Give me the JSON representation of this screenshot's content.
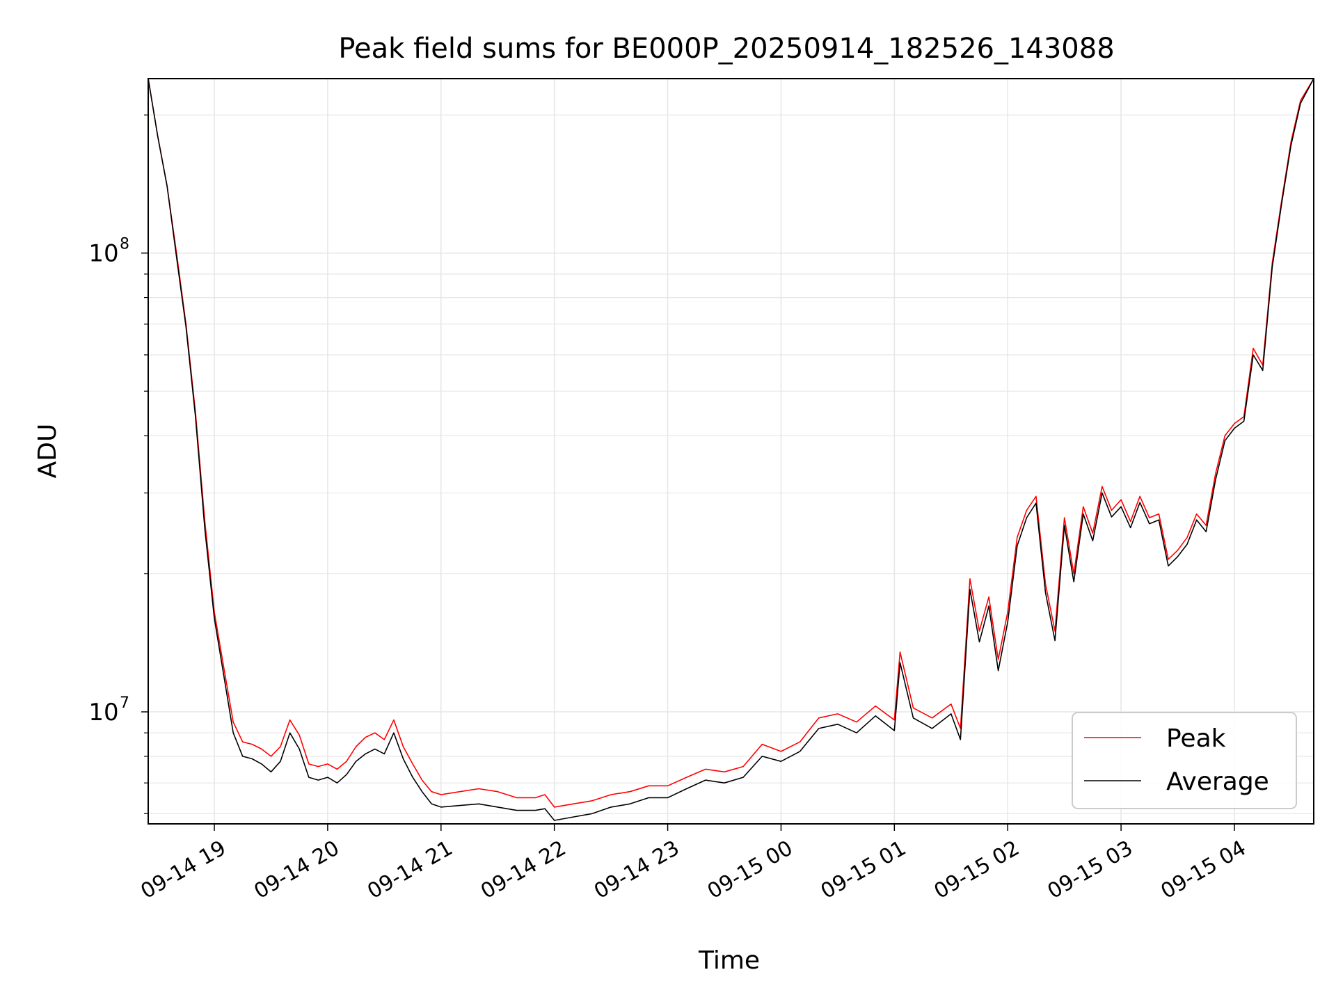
{
  "chart_data": {
    "type": "line",
    "title": "Peak field sums for BE000P_20250914_182526_143088",
    "xlabel": "Time",
    "ylabel": "ADU",
    "y_scale": "log",
    "xlim": [
      "2025-09-14 18:25",
      "2025-09-15 04:42"
    ],
    "ylim": [
      5700000,
      240000000
    ],
    "grid": true,
    "legend_position": "lower right",
    "x_tick_labels": [
      "09-14 19",
      "09-14 20",
      "09-14 21",
      "09-14 22",
      "09-14 23",
      "09-15 00",
      "09-15 01",
      "09-15 02",
      "09-15 03",
      "09-15 04"
    ],
    "y_tick_labels": [
      {
        "value": 10000000,
        "base": "10",
        "exp": "7"
      },
      {
        "value": 100000000,
        "base": "10",
        "exp": "8"
      }
    ],
    "series": [
      {
        "name": "Peak",
        "color": "#ff0000",
        "points": [
          [
            "2025-09-14 18:25",
            240000000
          ],
          [
            "2025-09-14 18:30",
            180000000
          ],
          [
            "2025-09-14 18:35",
            140000000
          ],
          [
            "2025-09-14 18:40",
            100000000
          ],
          [
            "2025-09-14 18:45",
            70000000
          ],
          [
            "2025-09-14 18:50",
            45000000
          ],
          [
            "2025-09-14 18:55",
            26000000
          ],
          [
            "2025-09-14 19:00",
            16500000
          ],
          [
            "2025-09-14 19:05",
            12500000
          ],
          [
            "2025-09-14 19:10",
            9500000
          ],
          [
            "2025-09-14 19:15",
            8600000
          ],
          [
            "2025-09-14 19:20",
            8500000
          ],
          [
            "2025-09-14 19:25",
            8300000
          ],
          [
            "2025-09-14 19:30",
            8000000
          ],
          [
            "2025-09-14 19:35",
            8400000
          ],
          [
            "2025-09-14 19:40",
            9600000
          ],
          [
            "2025-09-14 19:45",
            8900000
          ],
          [
            "2025-09-14 19:50",
            7700000
          ],
          [
            "2025-09-14 19:55",
            7600000
          ],
          [
            "2025-09-14 20:00",
            7700000
          ],
          [
            "2025-09-14 20:05",
            7500000
          ],
          [
            "2025-09-14 20:10",
            7800000
          ],
          [
            "2025-09-14 20:15",
            8400000
          ],
          [
            "2025-09-14 20:20",
            8800000
          ],
          [
            "2025-09-14 20:25",
            9000000
          ],
          [
            "2025-09-14 20:30",
            8700000
          ],
          [
            "2025-09-14 20:35",
            9600000
          ],
          [
            "2025-09-14 20:40",
            8400000
          ],
          [
            "2025-09-14 20:45",
            7700000
          ],
          [
            "2025-09-14 20:50",
            7100000
          ],
          [
            "2025-09-14 20:55",
            6700000
          ],
          [
            "2025-09-14 21:00",
            6600000
          ],
          [
            "2025-09-14 21:10",
            6700000
          ],
          [
            "2025-09-14 21:20",
            6800000
          ],
          [
            "2025-09-14 21:30",
            6700000
          ],
          [
            "2025-09-14 21:40",
            6500000
          ],
          [
            "2025-09-14 21:50",
            6500000
          ],
          [
            "2025-09-14 21:55",
            6600000
          ],
          [
            "2025-09-14 22:00",
            6200000
          ],
          [
            "2025-09-14 22:10",
            6300000
          ],
          [
            "2025-09-14 22:20",
            6400000
          ],
          [
            "2025-09-14 22:30",
            6600000
          ],
          [
            "2025-09-14 22:40",
            6700000
          ],
          [
            "2025-09-14 22:50",
            6900000
          ],
          [
            "2025-09-14 23:00",
            6900000
          ],
          [
            "2025-09-14 23:10",
            7200000
          ],
          [
            "2025-09-14 23:20",
            7500000
          ],
          [
            "2025-09-14 23:30",
            7400000
          ],
          [
            "2025-09-14 23:40",
            7600000
          ],
          [
            "2025-09-14 23:50",
            8500000
          ],
          [
            "2025-09-15 00:00",
            8200000
          ],
          [
            "2025-09-15 00:10",
            8600000
          ],
          [
            "2025-09-15 00:20",
            9700000
          ],
          [
            "2025-09-15 00:30",
            9900000
          ],
          [
            "2025-09-15 00:40",
            9500000
          ],
          [
            "2025-09-15 00:50",
            10300000
          ],
          [
            "2025-09-15 01:00",
            9600000
          ],
          [
            "2025-09-15 01:03",
            13500000
          ],
          [
            "2025-09-15 01:10",
            10200000
          ],
          [
            "2025-09-15 01:20",
            9700000
          ],
          [
            "2025-09-15 01:30",
            10400000
          ],
          [
            "2025-09-15 01:35",
            9200000
          ],
          [
            "2025-09-15 01:40",
            19500000
          ],
          [
            "2025-09-15 01:45",
            15000000
          ],
          [
            "2025-09-15 01:50",
            17800000
          ],
          [
            "2025-09-15 01:55",
            13000000
          ],
          [
            "2025-09-15 02:00",
            16500000
          ],
          [
            "2025-09-15 02:05",
            24000000
          ],
          [
            "2025-09-15 02:10",
            27500000
          ],
          [
            "2025-09-15 02:15",
            29500000
          ],
          [
            "2025-09-15 02:20",
            19000000
          ],
          [
            "2025-09-15 02:25",
            15000000
          ],
          [
            "2025-09-15 02:30",
            26500000
          ],
          [
            "2025-09-15 02:35",
            20000000
          ],
          [
            "2025-09-15 02:40",
            28000000
          ],
          [
            "2025-09-15 02:45",
            24500000
          ],
          [
            "2025-09-15 02:50",
            31000000
          ],
          [
            "2025-09-15 02:55",
            27500000
          ],
          [
            "2025-09-15 03:00",
            29000000
          ],
          [
            "2025-09-15 03:05",
            26000000
          ],
          [
            "2025-09-15 03:10",
            29500000
          ],
          [
            "2025-09-15 03:15",
            26500000
          ],
          [
            "2025-09-15 03:20",
            27000000
          ],
          [
            "2025-09-15 03:25",
            21500000
          ],
          [
            "2025-09-15 03:30",
            22500000
          ],
          [
            "2025-09-15 03:35",
            24000000
          ],
          [
            "2025-09-15 03:40",
            27000000
          ],
          [
            "2025-09-15 03:45",
            25500000
          ],
          [
            "2025-09-15 03:50",
            33000000
          ],
          [
            "2025-09-15 03:55",
            40000000
          ],
          [
            "2025-09-15 04:00",
            42500000
          ],
          [
            "2025-09-15 04:05",
            44000000
          ],
          [
            "2025-09-15 04:10",
            62000000
          ],
          [
            "2025-09-15 04:15",
            57000000
          ],
          [
            "2025-09-15 04:20",
            95000000
          ],
          [
            "2025-09-15 04:25",
            130000000
          ],
          [
            "2025-09-15 04:30",
            175000000
          ],
          [
            "2025-09-15 04:35",
            215000000
          ],
          [
            "2025-09-15 04:42",
            240000000
          ]
        ]
      },
      {
        "name": "Average",
        "color": "#000000",
        "points": [
          [
            "2025-09-14 18:25",
            240000000
          ],
          [
            "2025-09-14 18:30",
            180000000
          ],
          [
            "2025-09-14 18:35",
            140000000
          ],
          [
            "2025-09-14 18:40",
            98000000
          ],
          [
            "2025-09-14 18:45",
            69000000
          ],
          [
            "2025-09-14 18:50",
            44000000
          ],
          [
            "2025-09-14 18:55",
            25000000
          ],
          [
            "2025-09-14 19:00",
            16000000
          ],
          [
            "2025-09-14 19:05",
            12000000
          ],
          [
            "2025-09-14 19:10",
            9000000
          ],
          [
            "2025-09-14 19:15",
            8000000
          ],
          [
            "2025-09-14 19:20",
            7900000
          ],
          [
            "2025-09-14 19:25",
            7700000
          ],
          [
            "2025-09-14 19:30",
            7400000
          ],
          [
            "2025-09-14 19:35",
            7800000
          ],
          [
            "2025-09-14 19:40",
            9000000
          ],
          [
            "2025-09-14 19:45",
            8300000
          ],
          [
            "2025-09-14 19:50",
            7200000
          ],
          [
            "2025-09-14 19:55",
            7100000
          ],
          [
            "2025-09-14 20:00",
            7200000
          ],
          [
            "2025-09-14 20:05",
            7000000
          ],
          [
            "2025-09-14 20:10",
            7300000
          ],
          [
            "2025-09-14 20:15",
            7800000
          ],
          [
            "2025-09-14 20:20",
            8100000
          ],
          [
            "2025-09-14 20:25",
            8300000
          ],
          [
            "2025-09-14 20:30",
            8100000
          ],
          [
            "2025-09-14 20:35",
            9000000
          ],
          [
            "2025-09-14 20:40",
            7900000
          ],
          [
            "2025-09-14 20:45",
            7200000
          ],
          [
            "2025-09-14 20:50",
            6700000
          ],
          [
            "2025-09-14 20:55",
            6300000
          ],
          [
            "2025-09-14 21:00",
            6200000
          ],
          [
            "2025-09-14 21:10",
            6250000
          ],
          [
            "2025-09-14 21:20",
            6300000
          ],
          [
            "2025-09-14 21:30",
            6200000
          ],
          [
            "2025-09-14 21:40",
            6100000
          ],
          [
            "2025-09-14 21:50",
            6100000
          ],
          [
            "2025-09-14 21:55",
            6150000
          ],
          [
            "2025-09-14 22:00",
            5800000
          ],
          [
            "2025-09-14 22:10",
            5900000
          ],
          [
            "2025-09-14 22:20",
            6000000
          ],
          [
            "2025-09-14 22:30",
            6200000
          ],
          [
            "2025-09-14 22:40",
            6300000
          ],
          [
            "2025-09-14 22:50",
            6500000
          ],
          [
            "2025-09-14 23:00",
            6500000
          ],
          [
            "2025-09-14 23:10",
            6800000
          ],
          [
            "2025-09-14 23:20",
            7100000
          ],
          [
            "2025-09-14 23:30",
            7000000
          ],
          [
            "2025-09-14 23:40",
            7200000
          ],
          [
            "2025-09-14 23:50",
            8000000
          ],
          [
            "2025-09-15 00:00",
            7800000
          ],
          [
            "2025-09-15 00:10",
            8200000
          ],
          [
            "2025-09-15 00:20",
            9200000
          ],
          [
            "2025-09-15 00:30",
            9400000
          ],
          [
            "2025-09-15 00:40",
            9000000
          ],
          [
            "2025-09-15 00:50",
            9800000
          ],
          [
            "2025-09-15 01:00",
            9100000
          ],
          [
            "2025-09-15 01:03",
            12800000
          ],
          [
            "2025-09-15 01:10",
            9700000
          ],
          [
            "2025-09-15 01:20",
            9200000
          ],
          [
            "2025-09-15 01:30",
            9900000
          ],
          [
            "2025-09-15 01:35",
            8700000
          ],
          [
            "2025-09-15 01:40",
            18500000
          ],
          [
            "2025-09-15 01:45",
            14200000
          ],
          [
            "2025-09-15 01:50",
            17000000
          ],
          [
            "2025-09-15 01:55",
            12300000
          ],
          [
            "2025-09-15 02:00",
            15700000
          ],
          [
            "2025-09-15 02:05",
            23000000
          ],
          [
            "2025-09-15 02:10",
            26500000
          ],
          [
            "2025-09-15 02:15",
            28500000
          ],
          [
            "2025-09-15 02:20",
            18200000
          ],
          [
            "2025-09-15 02:25",
            14300000
          ],
          [
            "2025-09-15 02:30",
            25500000
          ],
          [
            "2025-09-15 02:35",
            19200000
          ],
          [
            "2025-09-15 02:40",
            27000000
          ],
          [
            "2025-09-15 02:45",
            23600000
          ],
          [
            "2025-09-15 02:50",
            30000000
          ],
          [
            "2025-09-15 02:55",
            26600000
          ],
          [
            "2025-09-15 03:00",
            28000000
          ],
          [
            "2025-09-15 03:05",
            25200000
          ],
          [
            "2025-09-15 03:10",
            28600000
          ],
          [
            "2025-09-15 03:15",
            25700000
          ],
          [
            "2025-09-15 03:20",
            26200000
          ],
          [
            "2025-09-15 03:25",
            20800000
          ],
          [
            "2025-09-15 03:30",
            21800000
          ],
          [
            "2025-09-15 03:35",
            23200000
          ],
          [
            "2025-09-15 03:40",
            26200000
          ],
          [
            "2025-09-15 03:45",
            24700000
          ],
          [
            "2025-09-15 03:50",
            32000000
          ],
          [
            "2025-09-15 03:55",
            39000000
          ],
          [
            "2025-09-15 04:00",
            41500000
          ],
          [
            "2025-09-15 04:05",
            43000000
          ],
          [
            "2025-09-15 04:10",
            60000000
          ],
          [
            "2025-09-15 04:15",
            55500000
          ],
          [
            "2025-09-15 04:20",
            93000000
          ],
          [
            "2025-09-15 04:25",
            128000000
          ],
          [
            "2025-09-15 04:30",
            172000000
          ],
          [
            "2025-09-15 04:35",
            212000000
          ],
          [
            "2025-09-15 04:42",
            240000000
          ]
        ]
      }
    ]
  }
}
